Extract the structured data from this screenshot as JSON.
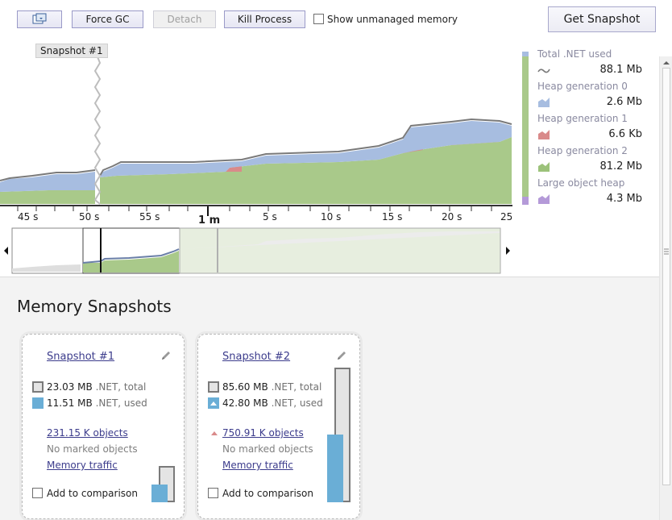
{
  "toolbar": {
    "force_gc": "Force GC",
    "detach": "Detach",
    "kill_process": "Kill Process",
    "show_unmanaged": "Show unmanaged memory",
    "get_snapshot": "Get Snapshot"
  },
  "timeline": {
    "snapshot_marker": "Snapshot #1",
    "ticks": [
      "45 s",
      "50 s",
      "55 s",
      "5 s",
      "10 s",
      "15 s",
      "20 s",
      "25"
    ],
    "major_label": "1 m"
  },
  "legend": [
    {
      "name": "Total .NET used",
      "value": "88.1 Mb",
      "color": "#7a7a7a"
    },
    {
      "name": "Heap generation 0",
      "value": "2.6 Mb",
      "color": "#a7bde0"
    },
    {
      "name": "Heap generation 1",
      "value": "6.6 Kb",
      "color": "#d98a8a"
    },
    {
      "name": "Heap generation 2",
      "value": "81.2 Mb",
      "color": "#9cc27a"
    },
    {
      "name": "Large object heap",
      "value": "4.3 Mb",
      "color": "#b49ad8"
    }
  ],
  "section": {
    "title": "Memory Snapshots"
  },
  "snapshots": [
    {
      "title": "Snapshot #1",
      "total_num": "23.03 MB",
      "total_lbl": ".NET, total",
      "used_num": "11.51 MB",
      "used_lbl": ".NET, used",
      "objects": "231.15 K objects",
      "marked": "No marked objects",
      "traffic": "Memory traffic",
      "compare": "Add to comparison"
    },
    {
      "title": "Snapshot #2",
      "total_num": "85.60 MB",
      "total_lbl": ".NET, total",
      "used_num": "42.80 MB",
      "used_lbl": ".NET, used",
      "objects": "750.91 K objects",
      "marked": "No marked objects",
      "traffic": "Memory traffic",
      "compare": "Add to comparison"
    }
  ]
}
